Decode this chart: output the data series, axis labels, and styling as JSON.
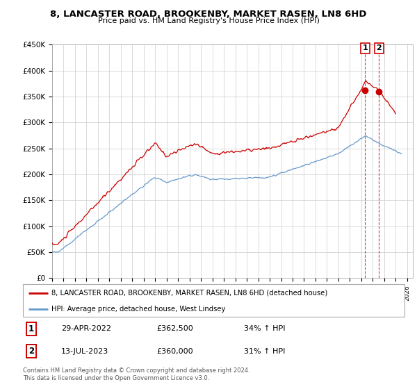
{
  "title": "8, LANCASTER ROAD, BROOKENBY, MARKET RASEN, LN8 6HD",
  "subtitle": "Price paid vs. HM Land Registry's House Price Index (HPI)",
  "ylabel_ticks": [
    "£0",
    "£50K",
    "£100K",
    "£150K",
    "£200K",
    "£250K",
    "£300K",
    "£350K",
    "£400K",
    "£450K"
  ],
  "ylim": [
    0,
    450000
  ],
  "xlim_start": 1995.0,
  "xlim_end": 2026.5,
  "legend_line1": "8, LANCASTER ROAD, BROOKENBY, MARKET RASEN, LN8 6HD (detached house)",
  "legend_line2": "HPI: Average price, detached house, West Lindsey",
  "annotation1_label": "1",
  "annotation1_date": "29-APR-2022",
  "annotation1_price": "£362,500",
  "annotation1_hpi": "34% ↑ HPI",
  "annotation2_label": "2",
  "annotation2_date": "13-JUL-2023",
  "annotation2_price": "£360,000",
  "annotation2_hpi": "31% ↑ HPI",
  "footer": "Contains HM Land Registry data © Crown copyright and database right 2024.\nThis data is licensed under the Open Government Licence v3.0.",
  "red_color": "#cc0000",
  "blue_color": "#6699cc",
  "sale1_x": 2022.33,
  "sale2_x": 2023.54,
  "sale1_y": 362500,
  "sale2_y": 360000
}
